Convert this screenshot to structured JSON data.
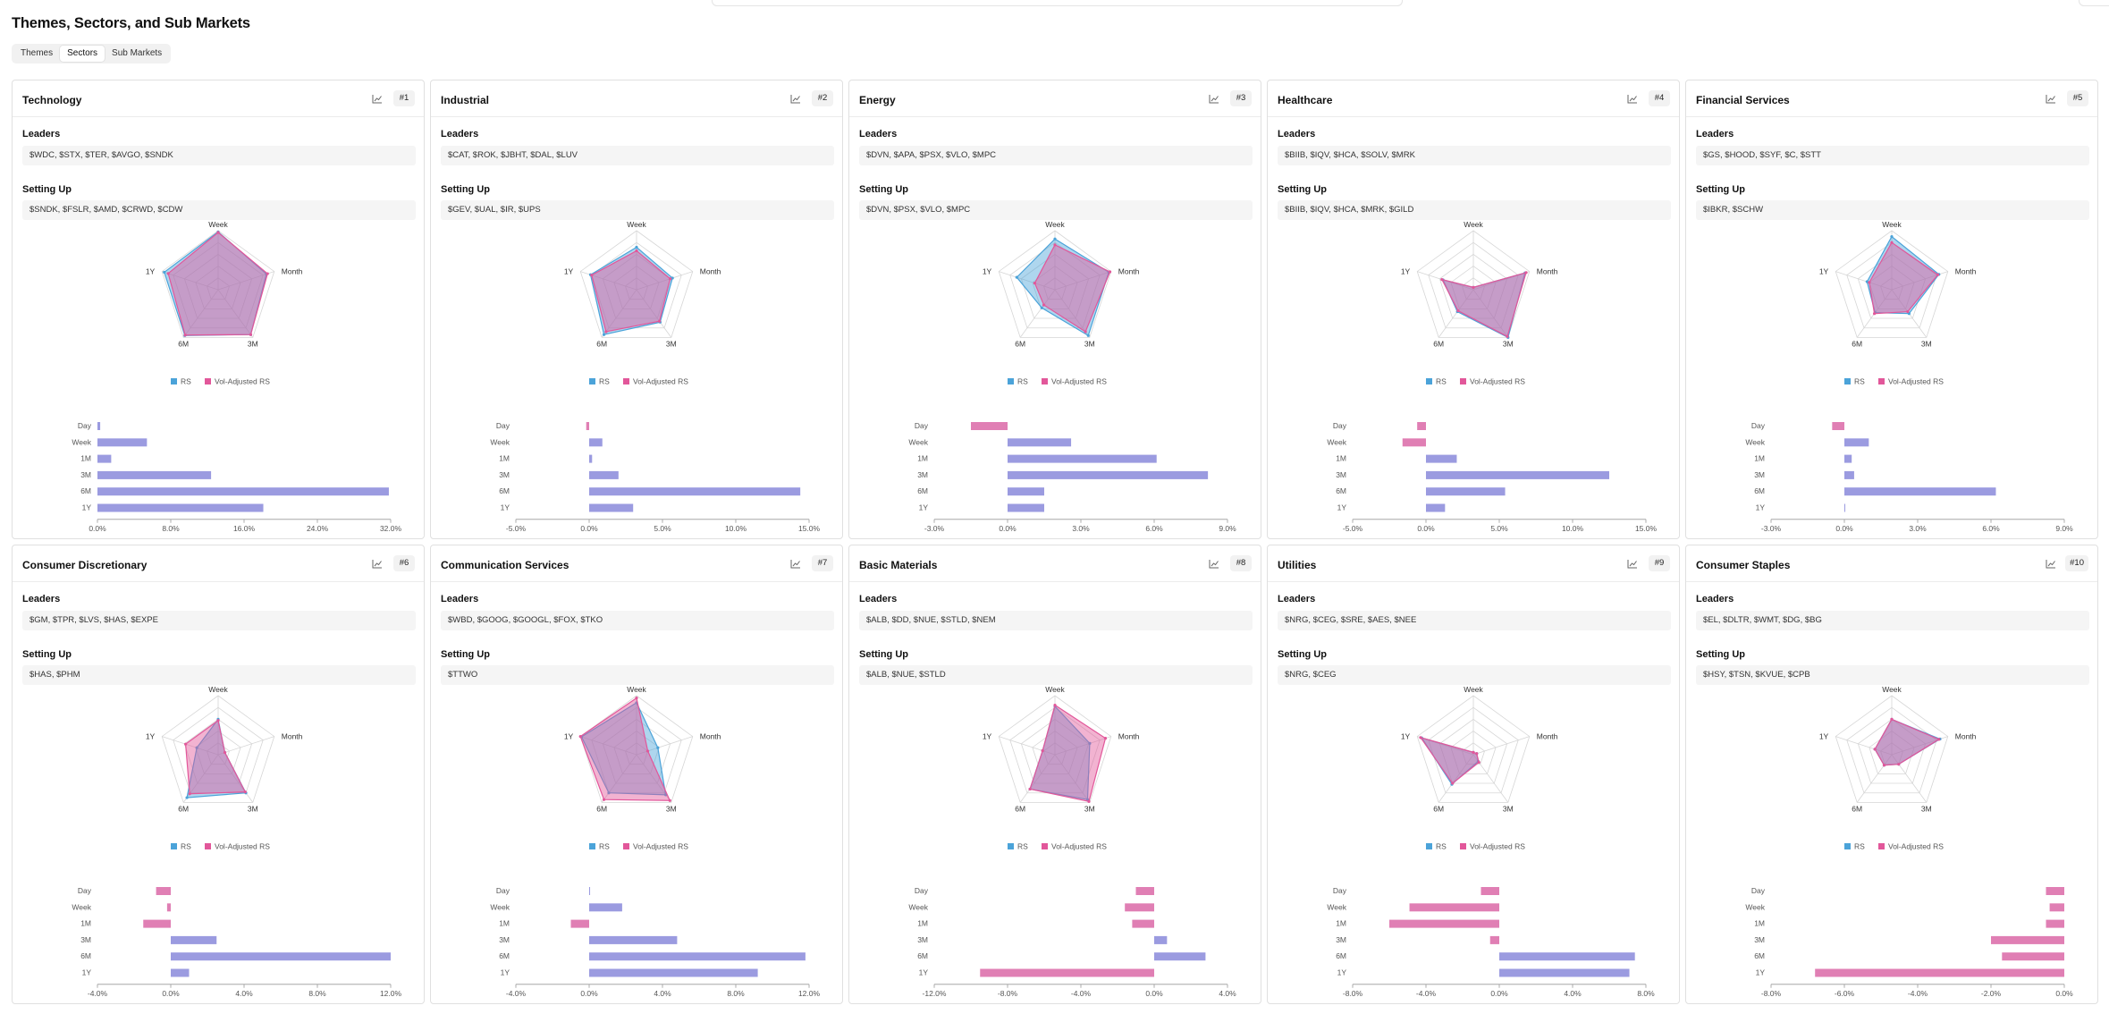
{
  "page_title": "Themes, Sectors, and Sub Markets",
  "tabs": [
    {
      "label": "Themes"
    },
    {
      "label": "Sectors"
    },
    {
      "label": "Sub Markets"
    }
  ],
  "active_tab": "Sectors",
  "labels": {
    "leaders": "Leaders",
    "setting_up": "Setting Up",
    "legend_rs": "RS",
    "legend_vol": "Vol-Adjusted RS"
  },
  "colors": {
    "rs": "#4ba3d9",
    "vol": "#e2579a",
    "bar_pos": "#9b9be0",
    "bar_neg": "#e07fb4",
    "grid": "#d6d6d6"
  },
  "radar_axes": [
    "Week",
    "Month",
    "3M",
    "6M",
    "1Y"
  ],
  "bar_categories": [
    "Day",
    "Week",
    "1M",
    "3M",
    "6M",
    "1Y"
  ],
  "sectors": [
    {
      "name": "Technology",
      "rank": "#1",
      "leaders": "$WDC, $STX, $TER, $AVGO, $SNDK",
      "setting_up": "$SNDK, $FSLR, $AMD, $CRWD, $CDW",
      "radar_rs": [
        0.98,
        0.86,
        0.94,
        0.96,
        0.96
      ],
      "radar_vol": [
        0.97,
        0.88,
        0.94,
        0.95,
        0.89
      ],
      "bar_values": [
        0.3,
        5.4,
        1.5,
        12.4,
        31.8,
        18.1
      ],
      "axis_ticks": [
        "0.0%",
        "8.0%",
        "16.0%",
        "24.0%",
        "32.0%"
      ],
      "axis_min": 0,
      "axis_max": 32
    },
    {
      "name": "Industrial",
      "rank": "#2",
      "leaders": "$CAT, $ROK, $JBHT, $DAL, $LUV",
      "setting_up": "$GEV, $UAL, $IR, $UPS",
      "radar_rs": [
        0.72,
        0.64,
        0.68,
        0.94,
        0.82
      ],
      "radar_vol": [
        0.66,
        0.6,
        0.66,
        0.88,
        0.8
      ],
      "bar_values": [
        -0.2,
        0.9,
        0.2,
        2.0,
        14.4,
        3.0
      ],
      "axis_ticks": [
        "-5.0%",
        "0.0%",
        "5.0%",
        "10.0%",
        "15.0%"
      ],
      "axis_min": -5,
      "axis_max": 15
    },
    {
      "name": "Energy",
      "rank": "#3",
      "leaders": "$DVN, $APA, $PSX, $VLO, $MPC",
      "setting_up": "$DVN, $PSX, $VLO, $MPC",
      "radar_rs": [
        0.86,
        0.96,
        0.96,
        0.38,
        0.68
      ],
      "radar_vol": [
        0.76,
        0.98,
        0.88,
        0.32,
        0.36
      ],
      "bar_values": [
        -1.5,
        2.6,
        6.1,
        8.2,
        1.5,
        1.5
      ],
      "axis_ticks": [
        "-3.0%",
        "0.0%",
        "3.0%",
        "6.0%",
        "9.0%"
      ],
      "axis_min": -3,
      "axis_max": 9
    },
    {
      "name": "Healthcare",
      "rank": "#4",
      "leaders": "$BIIB, $IQV, $HCA, $SOLV, $MRK",
      "setting_up": "$BIIB, $IQV, $HCA, $MRK, $GILD",
      "radar_rs": [
        0.04,
        0.92,
        1.0,
        0.46,
        0.54
      ],
      "radar_vol": [
        0.04,
        0.94,
        0.98,
        0.44,
        0.56
      ],
      "bar_values": [
        -0.6,
        -1.6,
        2.1,
        12.5,
        5.4,
        1.3
      ],
      "axis_ticks": [
        "-5.0%",
        "0.0%",
        "5.0%",
        "10.0%",
        "15.0%"
      ],
      "axis_min": -5,
      "axis_max": 15
    },
    {
      "name": "Financial Services",
      "rank": "#5",
      "leaders": "$GS, $HOOD, $SYF, $C, $STT",
      "setting_up": "$IBKR, $SCHW",
      "radar_rs": [
        0.9,
        0.84,
        0.5,
        0.48,
        0.44
      ],
      "radar_vol": [
        0.8,
        0.82,
        0.46,
        0.5,
        0.4
      ],
      "bar_values": [
        -0.5,
        1.0,
        0.3,
        0.4,
        6.2,
        0.0
      ],
      "axis_ticks": [
        "-3.0%",
        "0.0%",
        "3.0%",
        "6.0%",
        "9.0%"
      ],
      "axis_min": -3,
      "axis_max": 9
    },
    {
      "name": "Consumer Discretionary",
      "rank": "#6",
      "leaders": "$GM, $TPR, $LVS, $HAS, $EXPE",
      "setting_up": "$HAS, $PHM",
      "radar_rs": [
        0.6,
        0.12,
        0.8,
        0.9,
        0.38
      ],
      "radar_vol": [
        0.58,
        0.12,
        0.78,
        0.82,
        0.58
      ],
      "bar_values": [
        -0.8,
        -0.2,
        -1.5,
        2.5,
        12.0,
        1.0
      ],
      "axis_ticks": [
        "-4.0%",
        "0.0%",
        "4.0%",
        "8.0%",
        "12.0%"
      ],
      "axis_min": -4,
      "axis_max": 12
    },
    {
      "name": "Communication Services",
      "rank": "#7",
      "leaders": "$WBD, $GOOG, $GOOGL, $FOX, $TKO",
      "setting_up": "$TTWO",
      "radar_rs": [
        0.88,
        0.38,
        0.84,
        0.8,
        0.98
      ],
      "radar_vol": [
        0.96,
        0.2,
        0.96,
        0.94,
        1.0
      ],
      "bar_values": [
        0.05,
        1.8,
        -1.0,
        4.8,
        11.8,
        9.2
      ],
      "axis_ticks": [
        "-4.0%",
        "0.0%",
        "4.0%",
        "8.0%",
        "12.0%"
      ],
      "axis_min": -4,
      "axis_max": 12
    },
    {
      "name": "Basic Materials",
      "rank": "#8",
      "leaders": "$ALB, $DD, $NUE, $STLD, $NEM",
      "setting_up": "$ALB, $NUE, $STLD",
      "radar_rs": [
        0.82,
        0.62,
        0.94,
        0.72,
        0.22
      ],
      "radar_vol": [
        0.84,
        0.9,
        0.98,
        0.72,
        0.22
      ],
      "bar_values": [
        -1.0,
        -1.6,
        -1.2,
        0.7,
        2.8,
        -9.5
      ],
      "axis_ticks": [
        "-12.0%",
        "-8.0%",
        "-4.0%",
        "0.0%",
        "4.0%"
      ],
      "axis_min": -12,
      "axis_max": 4
    },
    {
      "name": "Utilities",
      "rank": "#9",
      "leaders": "$NRG, $CEG, $SRE, $AES, $NEE",
      "setting_up": "$NRG, $CEG",
      "radar_rs": [
        0.04,
        0.06,
        0.14,
        0.62,
        0.92
      ],
      "radar_vol": [
        0.04,
        0.06,
        0.16,
        0.6,
        0.94
      ],
      "bar_values": [
        -1.0,
        -4.9,
        -6.0,
        -0.5,
        7.4,
        7.1
      ],
      "axis_ticks": [
        "-8.0%",
        "-4.0%",
        "0.0%",
        "4.0%",
        "8.0%"
      ],
      "axis_min": -8,
      "axis_max": 8
    },
    {
      "name": "Consumer Staples",
      "rank": "#10",
      "leaders": "$EL, $DLTR, $WMT, $DG, $BG",
      "setting_up": "$HSY, $TSN, $KVUE, $CPB",
      "radar_rs": [
        0.6,
        0.86,
        0.2,
        0.22,
        0.3
      ],
      "radar_vol": [
        0.6,
        0.84,
        0.2,
        0.22,
        0.3
      ],
      "bar_values": [
        -0.5,
        -0.4,
        -0.5,
        -2.0,
        -1.7,
        -6.8
      ],
      "axis_ticks": [
        "-8.0%",
        "-6.0%",
        "-4.0%",
        "-2.0%",
        "0.0%"
      ],
      "axis_min": -8,
      "axis_max": 0
    }
  ]
}
